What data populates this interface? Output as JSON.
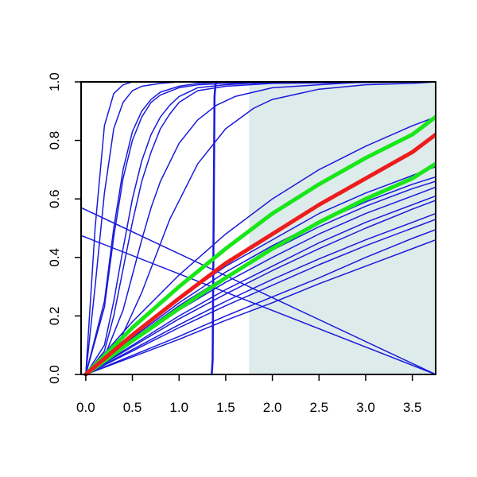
{
  "chart_data": {
    "type": "line",
    "title": "",
    "xlabel": "",
    "ylabel": "",
    "xlim": [
      -0.05,
      3.75
    ],
    "ylim": [
      0.0,
      1.0
    ],
    "x_ticks": [
      0.0,
      0.5,
      1.0,
      1.5,
      2.0,
      2.5,
      3.0,
      3.5
    ],
    "x_tick_labels": [
      "0.0",
      "0.5",
      "1.0",
      "1.5",
      "2.0",
      "2.5",
      "3.0",
      "3.5"
    ],
    "y_ticks": [
      0.0,
      0.2,
      0.4,
      0.6,
      0.8,
      1.0
    ],
    "y_tick_labels": [
      "0.0",
      "0.2",
      "0.4",
      "0.6",
      "0.8",
      "1.0"
    ],
    "grid": false,
    "shaded_region": {
      "x_start": 1.75,
      "x_end": 3.75,
      "color": "#deebeb"
    },
    "colors": {
      "blue": "#1a1adc",
      "green": "#19e619",
      "red": "#ee1c1c"
    },
    "series": [
      {
        "color": "blue",
        "width": 1.5,
        "x": [
          0,
          0.1,
          0.2,
          0.3,
          0.4,
          0.5,
          0.6,
          1.0,
          1.5,
          3.75
        ],
        "y": [
          0,
          0.5,
          0.85,
          0.96,
          0.99,
          1.0,
          1.0,
          1.0,
          1.0,
          1.0
        ]
      },
      {
        "color": "blue",
        "width": 1.5,
        "x": [
          0,
          0.1,
          0.2,
          0.3,
          0.4,
          0.5,
          0.6,
          0.8,
          1.0,
          1.5,
          3.75
        ],
        "y": [
          0,
          0.3,
          0.62,
          0.84,
          0.93,
          0.97,
          0.985,
          0.995,
          1.0,
          1.0,
          1.0
        ]
      },
      {
        "color": "blue",
        "width": 1.5,
        "x": [
          0,
          0.2,
          0.3,
          0.4,
          0.5,
          0.6,
          0.7,
          0.8,
          1.0,
          1.2,
          1.5,
          3.75
        ],
        "y": [
          0,
          0.25,
          0.5,
          0.7,
          0.83,
          0.9,
          0.94,
          0.965,
          0.985,
          0.995,
          1.0,
          1.0
        ]
      },
      {
        "color": "blue",
        "width": 1.5,
        "x": [
          0,
          0.2,
          0.3,
          0.4,
          0.5,
          0.6,
          0.7,
          0.8,
          1.0,
          1.2,
          1.5,
          3.75
        ],
        "y": [
          0,
          0.23,
          0.47,
          0.67,
          0.8,
          0.88,
          0.93,
          0.955,
          0.98,
          0.99,
          0.995,
          1.0
        ]
      },
      {
        "color": "blue",
        "width": 1.5,
        "x": [
          0,
          0.2,
          0.3,
          0.4,
          0.5,
          0.6,
          0.7,
          0.8,
          0.9,
          1.0,
          1.2,
          1.5,
          2.0,
          3.75
        ],
        "y": [
          0,
          0.1,
          0.25,
          0.43,
          0.6,
          0.73,
          0.82,
          0.88,
          0.92,
          0.95,
          0.98,
          0.99,
          1.0,
          1.0
        ]
      },
      {
        "color": "blue",
        "width": 1.5,
        "x": [
          0,
          0.2,
          0.3,
          0.4,
          0.5,
          0.6,
          0.7,
          0.8,
          0.9,
          1.0,
          1.2,
          1.5,
          2.0,
          3.75
        ],
        "y": [
          0,
          0.08,
          0.2,
          0.36,
          0.52,
          0.66,
          0.76,
          0.84,
          0.89,
          0.93,
          0.97,
          0.985,
          0.995,
          1.0
        ]
      },
      {
        "color": "blue",
        "width": 1.5,
        "x": [
          0,
          0.2,
          0.4,
          0.5,
          0.6,
          0.7,
          0.8,
          1.0,
          1.2,
          1.4,
          1.6,
          2.0,
          2.5,
          3.0,
          3.75
        ],
        "y": [
          0,
          0.06,
          0.22,
          0.34,
          0.46,
          0.57,
          0.66,
          0.79,
          0.87,
          0.92,
          0.95,
          0.98,
          0.99,
          1.0,
          1.0
        ]
      },
      {
        "color": "blue",
        "width": 1.5,
        "x": [
          0,
          0.3,
          0.6,
          0.9,
          1.2,
          1.5,
          1.8,
          2.0,
          2.5,
          3.0,
          3.5,
          3.75
        ],
        "y": [
          0,
          0.07,
          0.28,
          0.53,
          0.72,
          0.84,
          0.91,
          0.94,
          0.975,
          0.99,
          0.995,
          1.0
        ]
      },
      {
        "color": "blue",
        "width": 2.5,
        "x": [
          1.35,
          1.36,
          1.37,
          1.38,
          1.39,
          1.4
        ],
        "y": [
          0.0,
          0.05,
          0.5,
          0.95,
          0.99,
          1.0
        ]
      },
      {
        "color": "blue",
        "width": 1.5,
        "x": [
          0,
          0.5,
          1.0,
          1.5,
          2.0,
          2.5,
          3.0,
          3.5,
          3.75
        ],
        "y": [
          0,
          0.18,
          0.34,
          0.48,
          0.6,
          0.7,
          0.78,
          0.85,
          0.88
        ]
      },
      {
        "color": "blue",
        "width": 1.5,
        "x": [
          0,
          0.5,
          1.0,
          1.5,
          2.0,
          2.5,
          3.0,
          3.5,
          3.75
        ],
        "y": [
          0,
          0.13,
          0.26,
          0.37,
          0.46,
          0.55,
          0.62,
          0.68,
          0.71
        ]
      },
      {
        "color": "blue",
        "width": 1.5,
        "x": [
          0,
          0.5,
          1.0,
          1.5,
          2.0,
          2.5,
          3.0,
          3.5,
          3.75
        ],
        "y": [
          0,
          0.125,
          0.245,
          0.35,
          0.44,
          0.52,
          0.59,
          0.65,
          0.675
        ]
      },
      {
        "color": "blue",
        "width": 1.5,
        "x": [
          0,
          0.5,
          1.0,
          1.5,
          2.0,
          2.5,
          3.0,
          3.5,
          3.75
        ],
        "y": [
          0,
          0.12,
          0.235,
          0.335,
          0.425,
          0.505,
          0.575,
          0.635,
          0.66
        ]
      },
      {
        "color": "blue",
        "width": 1.5,
        "x": [
          0,
          0.5,
          1.0,
          1.5,
          2.0,
          2.5,
          3.0,
          3.5,
          3.75
        ],
        "y": [
          0,
          0.11,
          0.22,
          0.315,
          0.4,
          0.48,
          0.55,
          0.61,
          0.64
        ]
      },
      {
        "color": "blue",
        "width": 1.5,
        "x": [
          0,
          0.5,
          1.0,
          1.5,
          2.0,
          2.5,
          3.0,
          3.5,
          3.75
        ],
        "y": [
          0,
          0.1,
          0.2,
          0.29,
          0.37,
          0.45,
          0.52,
          0.58,
          0.61
        ]
      },
      {
        "color": "blue",
        "width": 1.5,
        "x": [
          0,
          0.5,
          1.0,
          1.5,
          2.0,
          2.5,
          3.0,
          3.5,
          3.75
        ],
        "y": [
          0,
          0.095,
          0.19,
          0.275,
          0.355,
          0.43,
          0.5,
          0.565,
          0.595
        ]
      },
      {
        "color": "blue",
        "width": 1.5,
        "x": [
          0,
          0.5,
          1.0,
          1.5,
          2.0,
          2.5,
          3.0,
          3.5,
          3.75
        ],
        "y": [
          0,
          0.085,
          0.17,
          0.25,
          0.325,
          0.395,
          0.46,
          0.52,
          0.55
        ]
      },
      {
        "color": "blue",
        "width": 1.5,
        "x": [
          0,
          0.5,
          1.0,
          1.5,
          2.0,
          2.5,
          3.0,
          3.5,
          3.75
        ],
        "y": [
          0,
          0.08,
          0.16,
          0.235,
          0.305,
          0.375,
          0.44,
          0.5,
          0.53
        ]
      },
      {
        "color": "blue",
        "width": 1.5,
        "x": [
          0,
          0.5,
          1.0,
          1.5,
          2.0,
          2.5,
          3.0,
          3.5,
          3.75
        ],
        "y": [
          0,
          0.065,
          0.13,
          0.2,
          0.265,
          0.33,
          0.4,
          0.465,
          0.495
        ]
      },
      {
        "color": "blue",
        "width": 1.5,
        "x": [
          0,
          0.5,
          1.0,
          1.5,
          2.0,
          2.5,
          3.0,
          3.5,
          3.75
        ],
        "y": [
          0,
          0.06,
          0.12,
          0.185,
          0.245,
          0.31,
          0.37,
          0.43,
          0.46
        ]
      },
      {
        "color": "blue",
        "width": 1.5,
        "x": [
          -0.05,
          3.75
        ],
        "y": [
          0.57,
          0.0
        ]
      },
      {
        "color": "blue",
        "width": 1.5,
        "x": [
          -0.05,
          3.75
        ],
        "y": [
          0.475,
          0.0
        ]
      },
      {
        "color": "green",
        "width": 5,
        "x": [
          0,
          0.5,
          1.0,
          1.5,
          2.0,
          2.5,
          3.0,
          3.5,
          3.75
        ],
        "y": [
          0,
          0.16,
          0.3,
          0.43,
          0.55,
          0.65,
          0.74,
          0.82,
          0.88
        ]
      },
      {
        "color": "green",
        "width": 5,
        "x": [
          0,
          0.5,
          1.0,
          1.5,
          2.0,
          2.5,
          3.0,
          3.5,
          3.75
        ],
        "y": [
          0,
          0.115,
          0.225,
          0.33,
          0.43,
          0.52,
          0.6,
          0.67,
          0.72
        ]
      },
      {
        "color": "red",
        "width": 5,
        "x": [
          0,
          0.5,
          1.0,
          1.5,
          2.0,
          2.5,
          3.0,
          3.5,
          3.75
        ],
        "y": [
          0,
          0.135,
          0.26,
          0.38,
          0.48,
          0.58,
          0.67,
          0.76,
          0.82
        ]
      }
    ]
  }
}
